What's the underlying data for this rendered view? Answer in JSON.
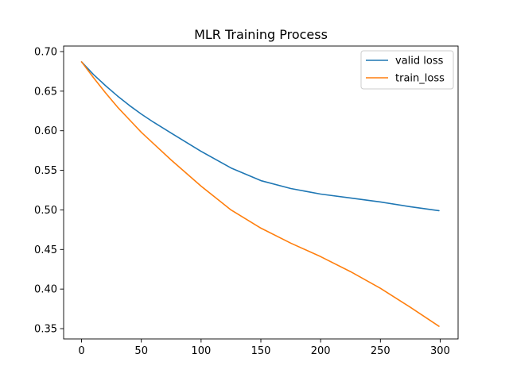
{
  "chart_data": {
    "type": "line",
    "title": "MLR Training Process",
    "xlabel": "",
    "ylabel": "",
    "xlim": [
      -15,
      315
    ],
    "ylim": [
      0.337,
      0.707
    ],
    "xticks": [
      0,
      50,
      100,
      150,
      200,
      250,
      300
    ],
    "yticks": [
      0.35,
      0.4,
      0.45,
      0.5,
      0.55,
      0.6,
      0.65,
      0.7
    ],
    "ytick_labels": [
      "0.35",
      "0.40",
      "0.45",
      "0.50",
      "0.55",
      "0.60",
      "0.65",
      "0.70"
    ],
    "grid": false,
    "legend_position": "top-right",
    "x": [
      0,
      10,
      20,
      30,
      40,
      50,
      60,
      75,
      100,
      125,
      150,
      175,
      200,
      225,
      250,
      275,
      299
    ],
    "series": [
      {
        "name": "valid loss",
        "color": "#1f77b4",
        "values": [
          0.687,
          0.671,
          0.657,
          0.644,
          0.632,
          0.621,
          0.611,
          0.597,
          0.574,
          0.553,
          0.537,
          0.527,
          0.52,
          0.515,
          0.51,
          0.504,
          0.499
        ]
      },
      {
        "name": "train_loss",
        "color": "#ff7f0e",
        "values": [
          0.687,
          0.667,
          0.648,
          0.63,
          0.614,
          0.598,
          0.584,
          0.563,
          0.53,
          0.5,
          0.477,
          0.458,
          0.441,
          0.422,
          0.401,
          0.377,
          0.353
        ]
      }
    ]
  }
}
